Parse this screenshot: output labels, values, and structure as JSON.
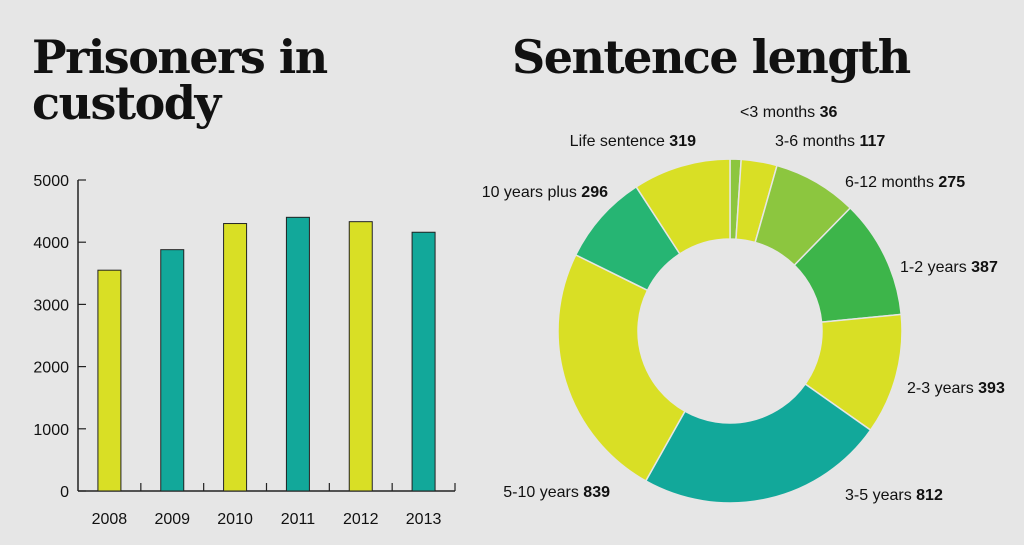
{
  "chart_data": [
    {
      "type": "bar",
      "title": "Prisoners in custody",
      "categories": [
        "2008",
        "2009",
        "2010",
        "2011",
        "2012",
        "2013"
      ],
      "values": [
        3550,
        3880,
        4300,
        4400,
        4330,
        4160
      ],
      "ylim": [
        0,
        5000
      ],
      "yticks": [
        0,
        1000,
        2000,
        3000,
        4000,
        5000
      ],
      "colors": [
        "#d9df25",
        "#12a89a",
        "#d9df25",
        "#12a89a",
        "#d9df25",
        "#12a89a"
      ],
      "xlabel": "",
      "ylabel": "",
      "grid": false
    },
    {
      "type": "pie",
      "style": "donut",
      "title": "Sentence length",
      "slices": [
        {
          "label": "<3 months",
          "value": 36,
          "color": "#8cc63f"
        },
        {
          "label": "3-6 months",
          "value": 117,
          "color": "#d9df25"
        },
        {
          "label": "6-12 months",
          "value": 275,
          "color": "#8cc63f"
        },
        {
          "label": "1-2 years",
          "value": 387,
          "color": "#3db54a"
        },
        {
          "label": "2-3 years",
          "value": 393,
          "color": "#d9df25"
        },
        {
          "label": "3-5 years",
          "value": 812,
          "color": "#12a89a"
        },
        {
          "label": "5-10 years",
          "value": 839,
          "color": "#d9df25"
        },
        {
          "label": "10 years plus",
          "value": 296,
          "color": "#26b573"
        },
        {
          "label": "Life sentence",
          "value": 319,
          "color": "#d9df25"
        }
      ]
    }
  ]
}
